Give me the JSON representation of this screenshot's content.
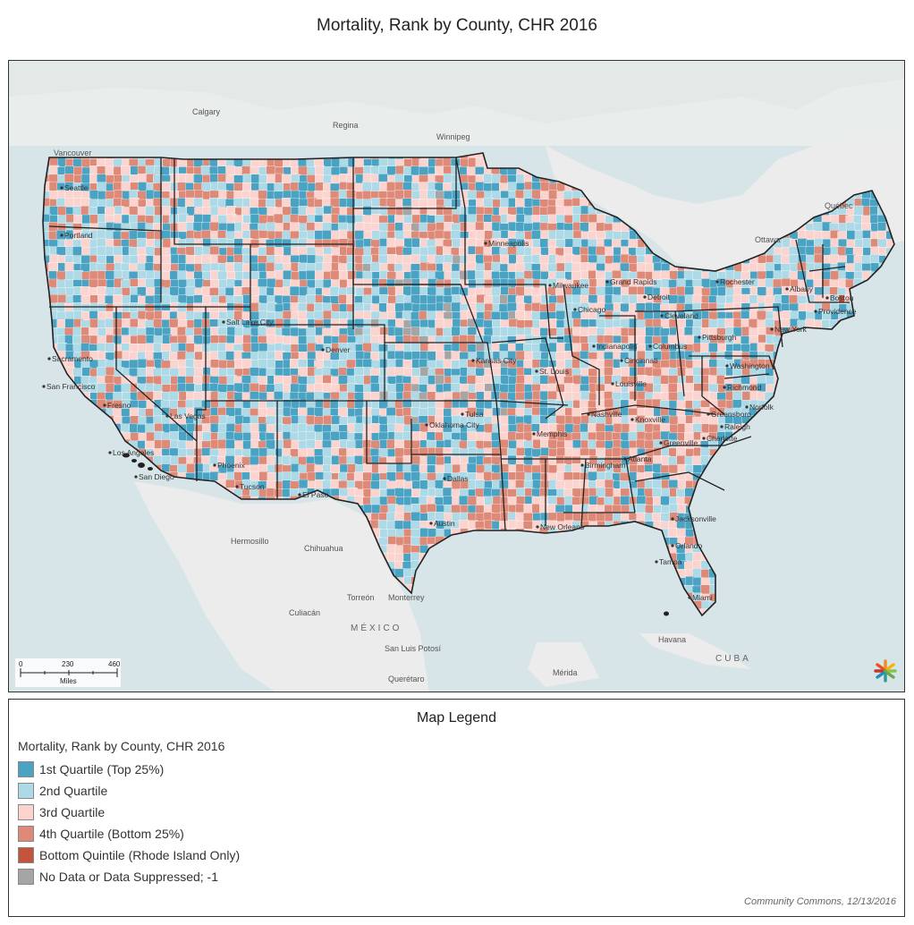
{
  "title": "Mortality, Rank by County, CHR 2016",
  "map": {
    "place_labels": [
      {
        "text": "Calgary"
      },
      {
        "text": "Regina"
      },
      {
        "text": "Winnipeg"
      },
      {
        "text": "Vancouver"
      },
      {
        "text": "Québec"
      },
      {
        "text": "Ottawa"
      },
      {
        "text": "Hermosillo"
      },
      {
        "text": "Chihuahua"
      },
      {
        "text": "Torreón"
      },
      {
        "text": "Monterrey"
      },
      {
        "text": "Culiacán"
      },
      {
        "text": "MÉXICO"
      },
      {
        "text": "San Luis Potosí"
      },
      {
        "text": "Querétaro"
      },
      {
        "text": "Mérida"
      },
      {
        "text": "Havana"
      },
      {
        "text": "CUBA"
      }
    ],
    "city_labels": [
      {
        "text": "Seattle"
      },
      {
        "text": "Portland"
      },
      {
        "text": "Sacramento"
      },
      {
        "text": "San Francisco"
      },
      {
        "text": "Fresno"
      },
      {
        "text": "Los Angeles"
      },
      {
        "text": "San Diego"
      },
      {
        "text": "Las Vegas"
      },
      {
        "text": "Salt Lake City"
      },
      {
        "text": "Phoenix"
      },
      {
        "text": "Tucson"
      },
      {
        "text": "El Paso"
      },
      {
        "text": "Denver"
      },
      {
        "text": "Minneapolis"
      },
      {
        "text": "Milwaukee"
      },
      {
        "text": "Chicago"
      },
      {
        "text": "Grand Rapids"
      },
      {
        "text": "Detroit"
      },
      {
        "text": "Cleveland"
      },
      {
        "text": "Pittsburgh"
      },
      {
        "text": "Rochester"
      },
      {
        "text": "Albany"
      },
      {
        "text": "Boston"
      },
      {
        "text": "Providence"
      },
      {
        "text": "New York"
      },
      {
        "text": "Washington"
      },
      {
        "text": "Richmond"
      },
      {
        "text": "Norfolk"
      },
      {
        "text": "Raleigh"
      },
      {
        "text": "Greensboro"
      },
      {
        "text": "Charlotte"
      },
      {
        "text": "Knoxville"
      },
      {
        "text": "Nashville"
      },
      {
        "text": "Louisville"
      },
      {
        "text": "Cincinnati"
      },
      {
        "text": "Columbus"
      },
      {
        "text": "Indianapolis"
      },
      {
        "text": "St. Louis"
      },
      {
        "text": "Kansas City"
      },
      {
        "text": "Oklahoma City"
      },
      {
        "text": "Tulsa"
      },
      {
        "text": "Dallas"
      },
      {
        "text": "Austin"
      },
      {
        "text": "Memphis"
      },
      {
        "text": "Birmingham"
      },
      {
        "text": "Atlanta"
      },
      {
        "text": "Greenville"
      },
      {
        "text": "Jacksonville"
      },
      {
        "text": "Orlando"
      },
      {
        "text": "Tampa"
      },
      {
        "text": "Miami"
      },
      {
        "text": "New Orleans"
      }
    ],
    "scale_bar": {
      "ticks": [
        "0",
        "230",
        "460"
      ],
      "unit": "Miles"
    },
    "colors": {
      "q1": "#4ba3c3",
      "q2": "#aed9e6",
      "q3": "#fbd4d0",
      "q4": "#de8a78",
      "bottom_quintile": "#c4553d",
      "no_data": "#a5a5a5",
      "water": "#d8e5e8",
      "land": "#ececec",
      "state_border": "#222222"
    }
  },
  "legend": {
    "title": "Map Legend",
    "subtitle": "Mortality, Rank by County, CHR 2016",
    "items": [
      {
        "label": "1st Quartile (Top 25%)",
        "color": "#4ba3c3"
      },
      {
        "label": "2nd Quartile",
        "color": "#aed9e6"
      },
      {
        "label": "3rd Quartile",
        "color": "#fbd4d0"
      },
      {
        "label": "4th Quartile (Bottom 25%)",
        "color": "#de8a78"
      },
      {
        "label": "Bottom Quintile (Rhode Island Only)",
        "color": "#c4553d"
      },
      {
        "label": "No Data or Data Suppressed; -1",
        "color": "#a5a5a5"
      }
    ]
  },
  "credit": "Community Commons, 12/13/2016"
}
